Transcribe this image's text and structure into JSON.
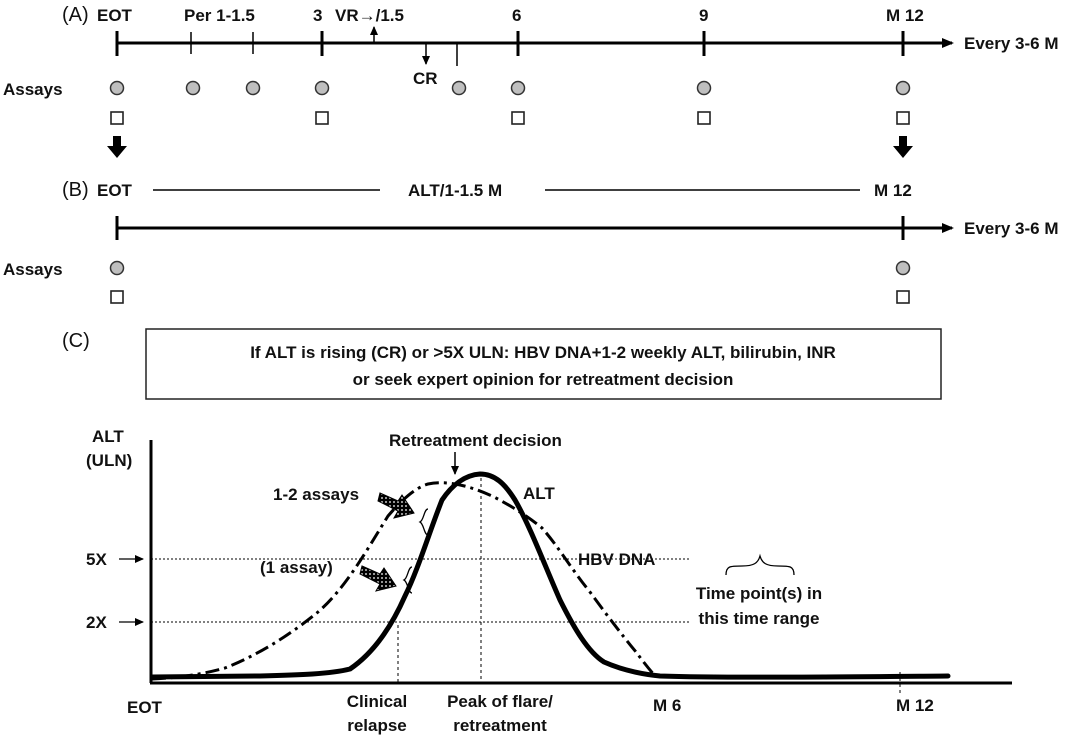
{
  "panelA": {
    "label": "(A)",
    "eot": "EOT",
    "per": "Per 1-1.5",
    "m3": "3",
    "vr": "VR→/1.5",
    "m6": "6",
    "m9": "9",
    "m12": "M 12",
    "every": "Every 3-6 M",
    "cr": "CR",
    "assays": "Assays"
  },
  "panelB": {
    "label": "(B)",
    "eot": "EOT",
    "mid": "ALT/1-1.5 M",
    "m12": "M 12",
    "every": "Every 3-6 M",
    "assays": "Assays"
  },
  "panelC": {
    "label": "(C)",
    "box_line1": "If ALT is rising (CR) or >5X ULN: HBV DNA+1-2 weekly ALT, bilirubin, INR",
    "box_line2": "or seek expert opinion for retreatment decision",
    "y_label_1": "ALT",
    "y_label_2": "(ULN)",
    "retreat": "Retreatment decision",
    "assays12": "1-2 assays",
    "assay1": "(1 assay)",
    "alt": "ALT",
    "hbv": "HBV DNA",
    "y5x": "5X",
    "y2x": "2X",
    "tp1": "Time point(s) in",
    "tp2": "this time range",
    "eot": "EOT",
    "clin1": "Clinical",
    "clin2": "relapse",
    "peak1": "Peak of flare/",
    "peak2": "retreatment",
    "m6": "M 6",
    "m12": "M 12"
  }
}
